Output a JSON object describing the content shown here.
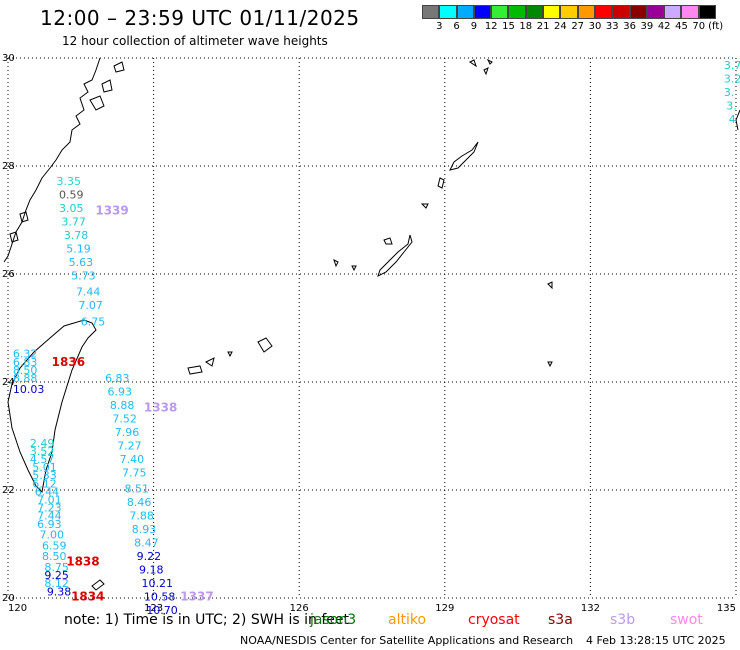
{
  "header": {
    "title": "12:00 – 23:59 UTC 01/11/2025",
    "subtitle": "12 hour collection of altimeter wave heights"
  },
  "colorbar": {
    "colors": [
      "#777777",
      "#00ffff",
      "#00aaff",
      "#0000ff",
      "#33ee33",
      "#00bb00",
      "#008800",
      "#ffff00",
      "#ffcc00",
      "#ff9900",
      "#ff0000",
      "#cc0000",
      "#880000",
      "#990099",
      "#ccaaff",
      "#ff88ee",
      "#000000"
    ],
    "labels": [
      "3",
      "6",
      "9",
      "12",
      "15",
      "18",
      "21",
      "24",
      "27",
      "30",
      "33",
      "36",
      "39",
      "42",
      "45",
      "70"
    ],
    "unit": "(ft)"
  },
  "map": {
    "lon_ticks": [
      "120",
      "123",
      "126",
      "129",
      "132",
      "135"
    ],
    "lat_ticks": [
      "30",
      "28",
      "26",
      "24",
      "22",
      "20"
    ]
  },
  "tracks": [
    {
      "id": "track-a",
      "points": [
        {
          "lat": 27.65,
          "lon": 121.0,
          "v": "3.35",
          "c": "#33cccc"
        },
        {
          "lat": 27.4,
          "lon": 121.05,
          "v": "0.59",
          "c": "#555555"
        },
        {
          "lat": 27.15,
          "lon": 121.05,
          "v": "3.05",
          "c": "#22cccc"
        },
        {
          "lat": 26.9,
          "lon": 121.1,
          "v": "3.77",
          "c": "#22cccc"
        },
        {
          "lat": 26.65,
          "lon": 121.15,
          "v": "3.78",
          "c": "#22cccc"
        },
        {
          "lat": 26.4,
          "lon": 121.2,
          "v": "5.19",
          "c": "#22bbee"
        },
        {
          "lat": 26.15,
          "lon": 121.25,
          "v": "5.63",
          "c": "#22bbee"
        },
        {
          "lat": 25.9,
          "lon": 121.3,
          "v": "5.73",
          "c": "#22bbee"
        },
        {
          "lat": 25.6,
          "lon": 121.4,
          "v": "7.44",
          "c": "#22bbee"
        },
        {
          "lat": 25.35,
          "lon": 121.45,
          "v": "7.07",
          "c": "#22bbee"
        },
        {
          "lat": 25.05,
          "lon": 121.5,
          "v": "6.75",
          "c": "#22bbee"
        }
      ]
    },
    {
      "id": "track-b",
      "points": [
        {
          "lat": 24.0,
          "lon": 122.0,
          "v": "6.83",
          "c": "#22bbee"
        },
        {
          "lat": 23.75,
          "lon": 122.05,
          "v": "6.93",
          "c": "#22bbee"
        },
        {
          "lat": 23.5,
          "lon": 122.1,
          "v": "8.88",
          "c": "#22bbee"
        },
        {
          "lat": 23.25,
          "lon": 122.15,
          "v": "7.52",
          "c": "#22bbee"
        },
        {
          "lat": 23.0,
          "lon": 122.2,
          "v": "7.96",
          "c": "#22bbee"
        },
        {
          "lat": 22.75,
          "lon": 122.25,
          "v": "7.27",
          "c": "#22bbee"
        },
        {
          "lat": 22.5,
          "lon": 122.3,
          "v": "7.40",
          "c": "#22bbee"
        },
        {
          "lat": 22.25,
          "lon": 122.35,
          "v": "7.75",
          "c": "#22bbee"
        },
        {
          "lat": 21.95,
          "lon": 122.4,
          "v": "8.51",
          "c": "#22bbee"
        },
        {
          "lat": 21.7,
          "lon": 122.45,
          "v": "8.46",
          "c": "#22bbee"
        },
        {
          "lat": 21.45,
          "lon": 122.5,
          "v": "7.88",
          "c": "#22bbee"
        },
        {
          "lat": 21.2,
          "lon": 122.55,
          "v": "8.93",
          "c": "#22bbee"
        },
        {
          "lat": 20.95,
          "lon": 122.6,
          "v": "8.47",
          "c": "#22bbee"
        },
        {
          "lat": 20.7,
          "lon": 122.65,
          "v": "9.22",
          "c": "#0000cc"
        },
        {
          "lat": 20.45,
          "lon": 122.7,
          "v": "9.18",
          "c": "#0000cc"
        },
        {
          "lat": 20.2,
          "lon": 122.75,
          "v": "10.21",
          "c": "#0000cc"
        },
        {
          "lat": 19.95,
          "lon": 122.8,
          "v": "10.58",
          "c": "#0000cc"
        },
        {
          "lat": 19.7,
          "lon": 122.85,
          "v": "10.70",
          "c": "#0000cc"
        }
      ]
    },
    {
      "id": "track-c",
      "points": [
        {
          "lat": 24.45,
          "lon": 120.1,
          "v": "6.32",
          "c": "#22bbee"
        },
        {
          "lat": 24.3,
          "lon": 120.1,
          "v": "6.83",
          "c": "#22bbee"
        },
        {
          "lat": 24.15,
          "lon": 120.1,
          "v": "8.50",
          "c": "#22bbee"
        },
        {
          "lat": 24.0,
          "lon": 120.1,
          "v": "8.88",
          "c": "#22bbee"
        },
        {
          "lat": 23.8,
          "lon": 120.1,
          "v": "10.03",
          "c": "#0000cc"
        }
      ]
    },
    {
      "id": "track-d",
      "points": [
        {
          "lat": 22.8,
          "lon": 120.45,
          "v": "2.49",
          "c": "#22cccc"
        },
        {
          "lat": 22.65,
          "lon": 120.45,
          "v": "3.52",
          "c": "#22cccc"
        },
        {
          "lat": 22.5,
          "lon": 120.45,
          "v": "4.57",
          "c": "#22bbee"
        },
        {
          "lat": 22.35,
          "lon": 120.5,
          "v": "5.01",
          "c": "#22bbee"
        },
        {
          "lat": 22.2,
          "lon": 120.5,
          "v": "5.33",
          "c": "#22bbee"
        },
        {
          "lat": 22.05,
          "lon": 120.5,
          "v": "6.12",
          "c": "#22bbee"
        },
        {
          "lat": 21.9,
          "lon": 120.55,
          "v": "6.44",
          "c": "#22bbee"
        },
        {
          "lat": 21.75,
          "lon": 120.6,
          "v": "7.01",
          "c": "#22bbee"
        },
        {
          "lat": 21.6,
          "lon": 120.6,
          "v": "7.23",
          "c": "#22bbee"
        },
        {
          "lat": 21.45,
          "lon": 120.6,
          "v": "7.44",
          "c": "#22bbee"
        },
        {
          "lat": 21.3,
          "lon": 120.6,
          "v": "6.93",
          "c": "#22bbee"
        },
        {
          "lat": 21.1,
          "lon": 120.65,
          "v": "7.00",
          "c": "#22bbee"
        },
        {
          "lat": 20.9,
          "lon": 120.7,
          "v": "6.59",
          "c": "#22bbee"
        },
        {
          "lat": 20.7,
          "lon": 120.7,
          "v": "8.50",
          "c": "#22bbee"
        },
        {
          "lat": 20.5,
          "lon": 120.75,
          "v": "8.75",
          "c": "#22bbee"
        },
        {
          "lat": 20.35,
          "lon": 120.75,
          "v": "9.25",
          "c": "#0000cc"
        },
        {
          "lat": 20.2,
          "lon": 120.75,
          "v": "8.12",
          "c": "#22bbee"
        },
        {
          "lat": 20.05,
          "lon": 120.8,
          "v": "9.38",
          "c": "#0000cc"
        }
      ]
    }
  ],
  "cyclone_labels": [
    {
      "lat": 27.1,
      "lon": 121.8,
      "v": "1339",
      "c": "#bb99ee"
    },
    {
      "lat": 23.45,
      "lon": 122.8,
      "v": "1338",
      "c": "#bb99ee"
    },
    {
      "lat": 24.3,
      "lon": 120.9,
      "v": "1836",
      "c": "#dd0000"
    },
    {
      "lat": 20.6,
      "lon": 121.2,
      "v": "1838",
      "c": "#dd0000"
    },
    {
      "lat": 19.95,
      "lon": 121.3,
      "v": "1834",
      "c": "#dd0000"
    },
    {
      "lat": 19.95,
      "lon": 123.55,
      "v": "1337",
      "c": "#bb99ee"
    }
  ],
  "edge_values": [
    {
      "lat": 29.8,
      "lon": 134.75,
      "v": "3.7",
      "c": "#22cccc"
    },
    {
      "lat": 29.55,
      "lon": 134.75,
      "v": "3.2",
      "c": "#22cccc"
    },
    {
      "lat": 29.3,
      "lon": 134.75,
      "v": "3.",
      "c": "#22cccc"
    },
    {
      "lat": 29.05,
      "lon": 134.8,
      "v": "3.",
      "c": "#22cccc"
    },
    {
      "lat": 28.8,
      "lon": 134.85,
      "v": "4",
      "c": "#22cccc"
    }
  ],
  "footer": {
    "note_prefix": "note: 1) Time is in UTC; 2) SWH is in feet",
    "satellites": [
      {
        "name": "jason3",
        "color": "#007700"
      },
      {
        "name": "altiko",
        "color": "#ff9900"
      },
      {
        "name": "cryosat",
        "color": "#ff0000"
      },
      {
        "name": "s3a",
        "color": "#880000"
      },
      {
        "name": "s3b",
        "color": "#bb99ee"
      },
      {
        "name": "swot",
        "color": "#ff88ee"
      }
    ],
    "credit": "NOAA/NESDIS Center for Satellite Applications and Research",
    "timestamp": "4 Feb 13:28:15 UTC 2025"
  }
}
